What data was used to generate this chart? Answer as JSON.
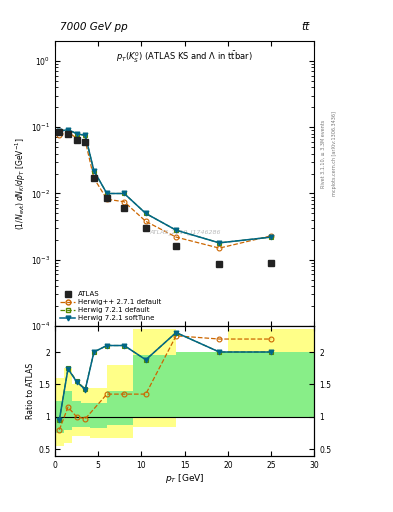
{
  "title_left": "7000 GeV pp",
  "title_right": "tt̅",
  "plot_title": "p_{T}(K^{0}_{S}) (ATLAS KS and \\Lambda in t\\bar{t}bar)",
  "watermark": "ATLAS_2019_I1746286",
  "xlabel": "p_{T} [GeV]",
  "ylabel": "(1/N_{evt}) dN_{K}/dp_{T} [GeV^{-1}]",
  "ratio_ylabel": "Ratio to ATLAS",
  "xlim": [
    0,
    30
  ],
  "ylim_main": [
    0.0001,
    2.0
  ],
  "ylim_ratio": [
    0.4,
    2.4
  ],
  "atlas_x": [
    0.5,
    1.5,
    2.5,
    3.5,
    4.5,
    6.0,
    8.0,
    10.5,
    14.0,
    19.0,
    25.0
  ],
  "atlas_y": [
    0.085,
    0.08,
    0.065,
    0.06,
    0.017,
    0.0085,
    0.006,
    0.003,
    0.0016,
    0.00085,
    0.0009
  ],
  "herwig_pp_x": [
    0.5,
    1.5,
    2.5,
    3.5,
    4.5,
    6.0,
    8.0,
    10.5,
    14.0,
    19.0,
    25.0
  ],
  "herwig_pp_y": [
    0.075,
    0.085,
    0.068,
    0.062,
    0.017,
    0.0082,
    0.0075,
    0.0038,
    0.0022,
    0.0015,
    0.0023
  ],
  "herwig721d_x": [
    0.5,
    1.5,
    2.5,
    3.5,
    4.5,
    6.0,
    8.0,
    10.5,
    14.0,
    19.0,
    25.0
  ],
  "herwig721d_y": [
    0.088,
    0.092,
    0.08,
    0.075,
    0.022,
    0.01,
    0.01,
    0.005,
    0.0028,
    0.0018,
    0.0022
  ],
  "herwig721s_x": [
    0.5,
    1.5,
    2.5,
    3.5,
    4.5,
    6.0,
    8.0,
    10.5,
    14.0,
    19.0,
    25.0
  ],
  "herwig721s_y": [
    0.087,
    0.092,
    0.08,
    0.075,
    0.022,
    0.01,
    0.01,
    0.005,
    0.0028,
    0.0018,
    0.0022
  ],
  "atlas_color": "#222222",
  "herwig_pp_color": "#cc6600",
  "herwig721d_color": "#558800",
  "herwig721s_color": "#006688",
  "band_yellow_edges": [
    0,
    1,
    2,
    3,
    4,
    6,
    9,
    14,
    20,
    30
  ],
  "band_yellow_lo": [
    0.55,
    0.6,
    0.7,
    0.7,
    0.68,
    0.68,
    0.85,
    1.0,
    1.0
  ],
  "band_yellow_hi": [
    1.6,
    1.75,
    1.5,
    1.45,
    1.45,
    1.8,
    2.35,
    2.0,
    2.35
  ],
  "band_green_edges": [
    0,
    1,
    2,
    3,
    4,
    6,
    9,
    14,
    20,
    30
  ],
  "band_green_lo": [
    0.75,
    0.8,
    0.85,
    0.85,
    0.82,
    0.88,
    1.0,
    1.0,
    1.0
  ],
  "band_green_hi": [
    1.25,
    1.4,
    1.25,
    1.22,
    1.22,
    1.4,
    1.95,
    2.0,
    2.0
  ],
  "ratio_pp_x": [
    0.5,
    1.5,
    2.5,
    3.5,
    6.0,
    8.0,
    10.5,
    14.0,
    19.0,
    25.0
  ],
  "ratio_pp_y": [
    0.8,
    1.15,
    1.0,
    0.97,
    1.35,
    1.35,
    1.35,
    2.25,
    2.2,
    2.2
  ],
  "ratio_721d_x": [
    0.5,
    1.5,
    2.5,
    3.5,
    4.5,
    6.0,
    8.0,
    10.5,
    14.0,
    19.0,
    25.0
  ],
  "ratio_721d_y": [
    0.95,
    1.75,
    1.55,
    1.43,
    2.0,
    2.1,
    2.1,
    1.88,
    2.3,
    2.0,
    2.0
  ],
  "ratio_721s_x": [
    0.5,
    1.5,
    2.5,
    3.5,
    4.5,
    6.0,
    8.0,
    10.5,
    14.0,
    19.0,
    25.0
  ],
  "ratio_721s_y": [
    0.95,
    1.74,
    1.54,
    1.42,
    2.0,
    2.1,
    2.1,
    1.88,
    2.3,
    2.0,
    2.0
  ]
}
